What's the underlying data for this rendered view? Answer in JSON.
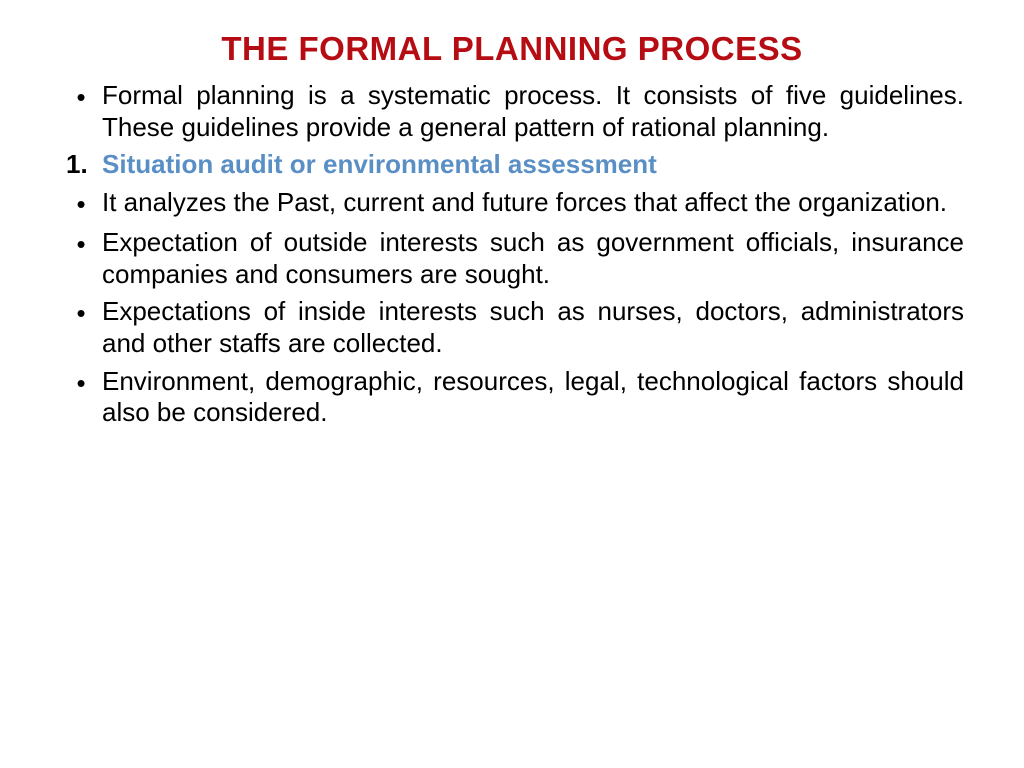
{
  "title": "THE FORMAL PLANNING PROCESS",
  "colors": {
    "title": "#b60d14",
    "body": "#000000",
    "subtitle": "#5a8fc6",
    "background": "#ffffff"
  },
  "typography": {
    "title_fontsize": 33,
    "body_fontsize": 26,
    "title_weight": "bold",
    "subtitle_weight": "bold",
    "font_family": "Arial"
  },
  "bullets": {
    "intro": "Formal planning is a systematic process. It consists of five guidelines. These guidelines provide a general pattern of rational planning.",
    "section_number": "1.",
    "section_title": "Situation audit or environmental assessment",
    "point1": "It analyzes the Past, current and future forces that affect the organization.",
    "point2": "Expectation of outside interests such as government officials, insurance companies and consumers are sought.",
    "point3": " Expectations of inside interests such as nurses, doctors, administrators and other staffs are collected.",
    "point4": " Environment, demographic, resources, legal, technological factors should also be considered."
  },
  "bullet_char": "•"
}
